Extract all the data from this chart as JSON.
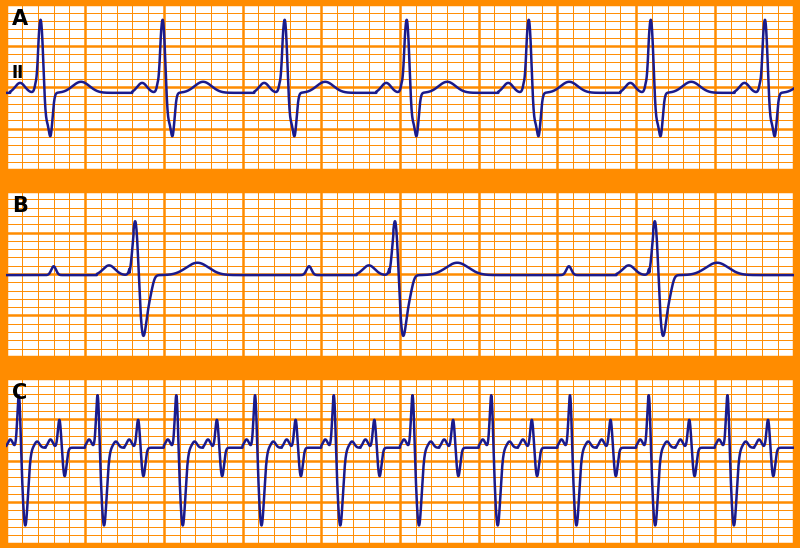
{
  "bg_color": "#FF8C00",
  "ecg_color": "#1A1A8C",
  "cell_bg": "#FFFFFF",
  "grid_color": "#FF8C00",
  "ecg_lw": 1.8,
  "grid_major_lw": 1.8,
  "grid_minor_lw": 0.7,
  "label_fontsize": 15,
  "label_II_fontsize": 12,
  "panels": [
    "A",
    "B",
    "C"
  ]
}
